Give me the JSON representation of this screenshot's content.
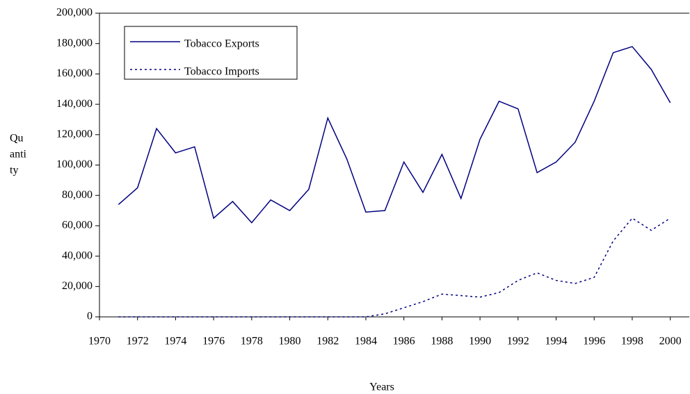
{
  "chart_data": {
    "type": "line",
    "y_label": [
      "Qu",
      "anti",
      "ty"
    ],
    "x_label": "Years",
    "x": [
      1971,
      1972,
      1973,
      1974,
      1975,
      1976,
      1977,
      1978,
      1979,
      1980,
      1981,
      1982,
      1983,
      1984,
      1985,
      1986,
      1987,
      1988,
      1989,
      1990,
      1991,
      1992,
      1993,
      1994,
      1995,
      1996,
      1997,
      1998,
      1999,
      2000
    ],
    "series": [
      {
        "name": "Tobacco Exports",
        "color": "#000080",
        "dash": "solid",
        "values": [
          74000,
          85000,
          124000,
          108000,
          112000,
          65000,
          76000,
          62000,
          77000,
          70000,
          84000,
          131000,
          104000,
          69000,
          70000,
          102000,
          82000,
          107000,
          78000,
          117000,
          142000,
          137000,
          95000,
          102000,
          115000,
          142000,
          174000,
          178000,
          163000,
          141000
        ]
      },
      {
        "name": "Tobacco Imports",
        "color": "#000080",
        "dash": "dotted",
        "values": [
          0,
          0,
          0,
          0,
          0,
          0,
          0,
          0,
          0,
          0,
          0,
          0,
          0,
          0,
          2000,
          6000,
          10000,
          15000,
          14000,
          13000,
          16000,
          24000,
          29000,
          24000,
          22000,
          26000,
          50000,
          65000,
          57000,
          65000
        ]
      }
    ],
    "xlim": [
      1970,
      2001
    ],
    "xticks": [
      1970,
      1972,
      1974,
      1976,
      1978,
      1980,
      1982,
      1984,
      1986,
      1988,
      1990,
      1992,
      1994,
      1996,
      1998,
      2000
    ],
    "ylim": [
      0,
      200000
    ],
    "yticks": [
      0,
      {
        "value": 20000,
        "label": "20,000"
      },
      {
        "value": 40000,
        "label": "40,000"
      },
      {
        "value": 60000,
        "label": "60,000"
      },
      {
        "value": 80000,
        "label": "80,000"
      },
      {
        "value": 100000,
        "label": "100,000"
      },
      {
        "value": 120000,
        "label": "120,000"
      },
      {
        "value": 140000,
        "label": "140,000"
      },
      {
        "value": 160000,
        "label": "160,000"
      },
      {
        "value": 180000,
        "label": "180,000"
      },
      {
        "value": 200000,
        "label": "200,000"
      }
    ],
    "legend": "top-left"
  }
}
